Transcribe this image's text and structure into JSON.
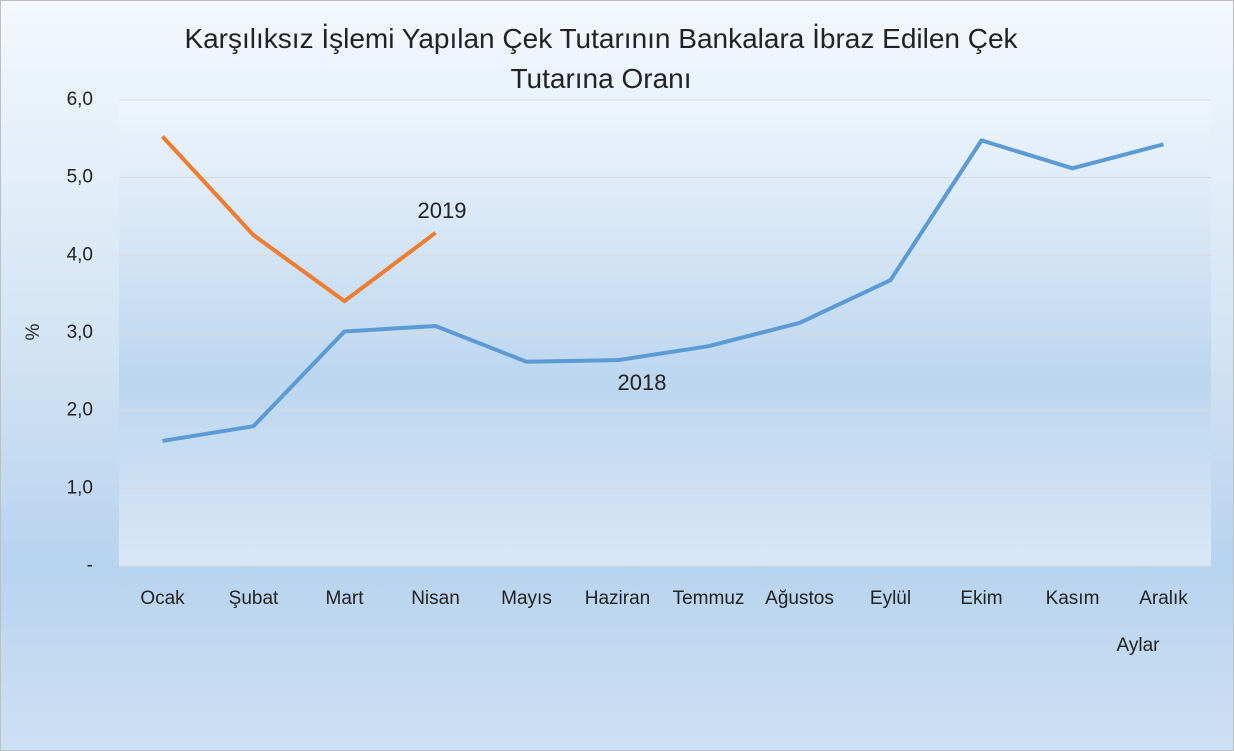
{
  "chart_data": {
    "type": "line",
    "title": "Karşılıksız İşlemi Yapılan Çek Tutarının Bankalara İbraz Edilen Çek Tutarına Oranı",
    "ylabel": "%",
    "xlabel": "Aylar",
    "categories": [
      "Ocak",
      "Şubat",
      "Mart",
      "Nisan",
      "Mayıs",
      "Haziran",
      "Temmuz",
      "Ağustos",
      "Eylül",
      "Ekim",
      "Kasım",
      "Aralık"
    ],
    "series": [
      {
        "name": "2018",
        "color": "#5b9bd5",
        "values": [
          1.61,
          1.8,
          3.02,
          3.09,
          2.63,
          2.65,
          2.83,
          3.13,
          3.68,
          5.48,
          5.12,
          5.43
        ]
      },
      {
        "name": "2019",
        "color": "#ed7d31",
        "values": [
          5.53,
          4.26,
          3.41,
          4.29,
          null,
          null,
          null,
          null,
          null,
          null,
          null,
          null
        ]
      }
    ],
    "ylim": [
      0,
      6
    ],
    "yticks": [
      {
        "value": 0,
        "label": "-"
      },
      {
        "value": 1,
        "label": "1,0"
      },
      {
        "value": 2,
        "label": "2,0"
      },
      {
        "value": 3,
        "label": "3,0"
      },
      {
        "value": 4,
        "label": "4,0"
      },
      {
        "value": 5,
        "label": "5,0"
      },
      {
        "value": 6,
        "label": "6,0"
      }
    ],
    "grid": true
  }
}
